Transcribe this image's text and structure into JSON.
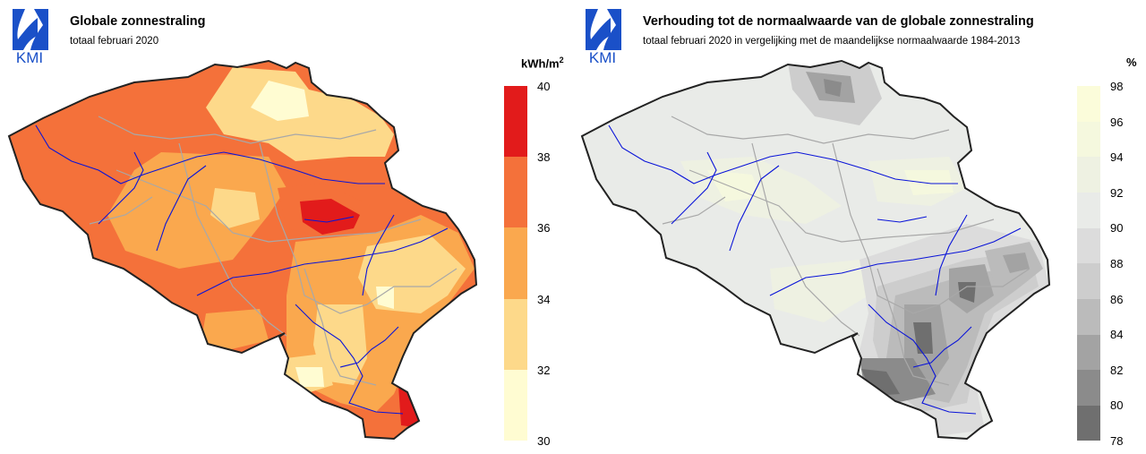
{
  "logo": {
    "text": "KMI",
    "icon": "kmi-logo-icon"
  },
  "left_panel": {
    "title": "Globale zonnestraling",
    "subtitle": "totaal februari 2020",
    "unit": "kWh/m",
    "unit_sup": "2",
    "legend_ticks": [
      "40",
      "38",
      "36",
      "34",
      "32",
      "30"
    ],
    "legend_colors": [
      "#e21b1b",
      "#f4713a",
      "#faa84e",
      "#fdd98a",
      "#fffcd2"
    ]
  },
  "right_panel": {
    "title": "Verhouding tot de normaalwaarde van de globale zonnestraling",
    "subtitle": "totaal februari 2020 in vergelijking met de maandelijkse normaalwaarde 1984-2013",
    "unit": "%",
    "legend_ticks": [
      "98",
      "96",
      "94",
      "92",
      "90",
      "88",
      "86",
      "84",
      "82",
      "80",
      "78"
    ],
    "legend_colors": [
      "#fbfcda",
      "#f5f8de",
      "#eef1e2",
      "#e9ebe8",
      "#dcdcdc",
      "#cdcdcd",
      "#bbbbbb",
      "#a3a3a3",
      "#8b8b8b",
      "#6f6f6f"
    ]
  },
  "colors": {
    "border": "#222222",
    "rivers": "#0a14d8",
    "provinces": "#a8a8a8"
  }
}
